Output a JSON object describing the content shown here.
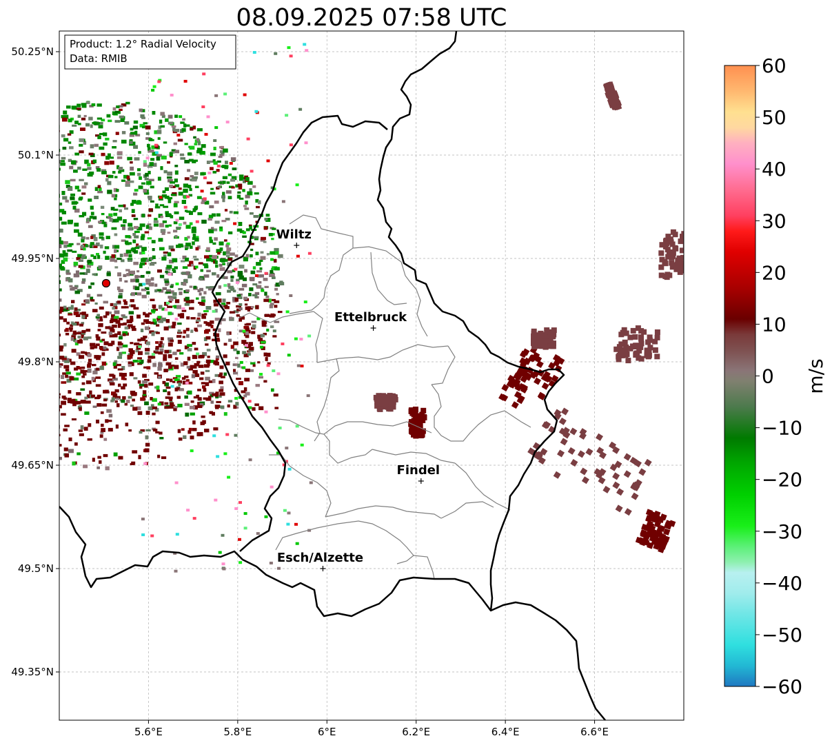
{
  "title": "08.09.2025 07:58 UTC",
  "info_box": {
    "product": "Product: 1.2° Radial Velocity",
    "data": "Data: RMIB"
  },
  "map": {
    "lon_range": [
      5.4,
      6.8
    ],
    "lat_range": [
      49.28,
      50.28
    ],
    "lon_ticks": [
      {
        "value": 5.6,
        "label": "5.6°E"
      },
      {
        "value": 5.8,
        "label": "5.8°E"
      },
      {
        "value": 6.0,
        "label": "6°E"
      },
      {
        "value": 6.2,
        "label": "6.2°E"
      },
      {
        "value": 6.4,
        "label": "6.4°E"
      },
      {
        "value": 6.6,
        "label": "6.6°E"
      }
    ],
    "lat_ticks": [
      {
        "value": 50.25,
        "label": "50.25°N"
      },
      {
        "value": 50.1,
        "label": "50.1°N"
      },
      {
        "value": 49.95,
        "label": "49.95°N"
      },
      {
        "value": 49.8,
        "label": "49.8°N"
      },
      {
        "value": 49.65,
        "label": "49.65°N"
      },
      {
        "value": 49.5,
        "label": "49.5°N"
      },
      {
        "value": 49.35,
        "label": "49.35°N"
      }
    ],
    "radar_site": {
      "lon": 5.505,
      "lat": 49.914
    },
    "cities": [
      {
        "name": "Wiltz",
        "lon": 5.932,
        "lat": 49.969
      },
      {
        "name": "Ettelbruck",
        "lon": 6.104,
        "lat": 49.849
      },
      {
        "name": "Findel",
        "lon": 6.211,
        "lat": 49.627
      },
      {
        "name": "Esch/Alzette",
        "lon": 5.991,
        "lat": 49.5
      }
    ]
  },
  "colorbar": {
    "label": "m/s",
    "min": -60,
    "max": 60,
    "ticks": [
      {
        "value": 60,
        "label": "60"
      },
      {
        "value": 50,
        "label": "50"
      },
      {
        "value": 40,
        "label": "40"
      },
      {
        "value": 30,
        "label": "30"
      },
      {
        "value": 20,
        "label": "20"
      },
      {
        "value": 10,
        "label": "10"
      },
      {
        "value": 0,
        "label": "0"
      },
      {
        "value": -10,
        "label": "−10"
      },
      {
        "value": -20,
        "label": "−20"
      },
      {
        "value": -30,
        "label": "−30"
      },
      {
        "value": -40,
        "label": "−40"
      },
      {
        "value": -50,
        "label": "−50"
      },
      {
        "value": -60,
        "label": "−60"
      }
    ],
    "stops": [
      {
        "value": -60,
        "color": "#1f78c1"
      },
      {
        "value": -56,
        "color": "#22b8d4"
      },
      {
        "value": -52,
        "color": "#2fdfdf"
      },
      {
        "value": -46,
        "color": "#70e6e6"
      },
      {
        "value": -42,
        "color": "#a0ecec"
      },
      {
        "value": -38,
        "color": "#b8f0f0"
      },
      {
        "value": -36,
        "color": "#8ef0b0"
      },
      {
        "value": -33,
        "color": "#5cf078"
      },
      {
        "value": -29,
        "color": "#19ef19"
      },
      {
        "value": -23,
        "color": "#00d000"
      },
      {
        "value": -17,
        "color": "#00a800"
      },
      {
        "value": -12,
        "color": "#007a00"
      },
      {
        "value": -6,
        "color": "#4c7a4c"
      },
      {
        "value": -1,
        "color": "#808070"
      },
      {
        "value": 1,
        "color": "#8a7577"
      },
      {
        "value": 5,
        "color": "#7e5050"
      },
      {
        "value": 8,
        "color": "#7a3a3a"
      },
      {
        "value": 11,
        "color": "#6a0000"
      },
      {
        "value": 17,
        "color": "#a80000"
      },
      {
        "value": 24,
        "color": "#e00000"
      },
      {
        "value": 28,
        "color": "#ff1a1a"
      },
      {
        "value": 31,
        "color": "#ff4060"
      },
      {
        "value": 36,
        "color": "#ff6c90"
      },
      {
        "value": 41,
        "color": "#ff90cc"
      },
      {
        "value": 45,
        "color": "#ffb0c0"
      },
      {
        "value": 48,
        "color": "#ffd8a0"
      },
      {
        "value": 51,
        "color": "#ffe090"
      },
      {
        "value": 55,
        "color": "#ffb870"
      },
      {
        "value": 60,
        "color": "#ff9050"
      }
    ]
  },
  "colors": {
    "radar_site": "#e00000",
    "country_border": "#000000",
    "canton_border": "#808080",
    "grid": "#b0b0b0",
    "far_echo": "#7a3e42",
    "far_echo_dark": "#700000"
  }
}
